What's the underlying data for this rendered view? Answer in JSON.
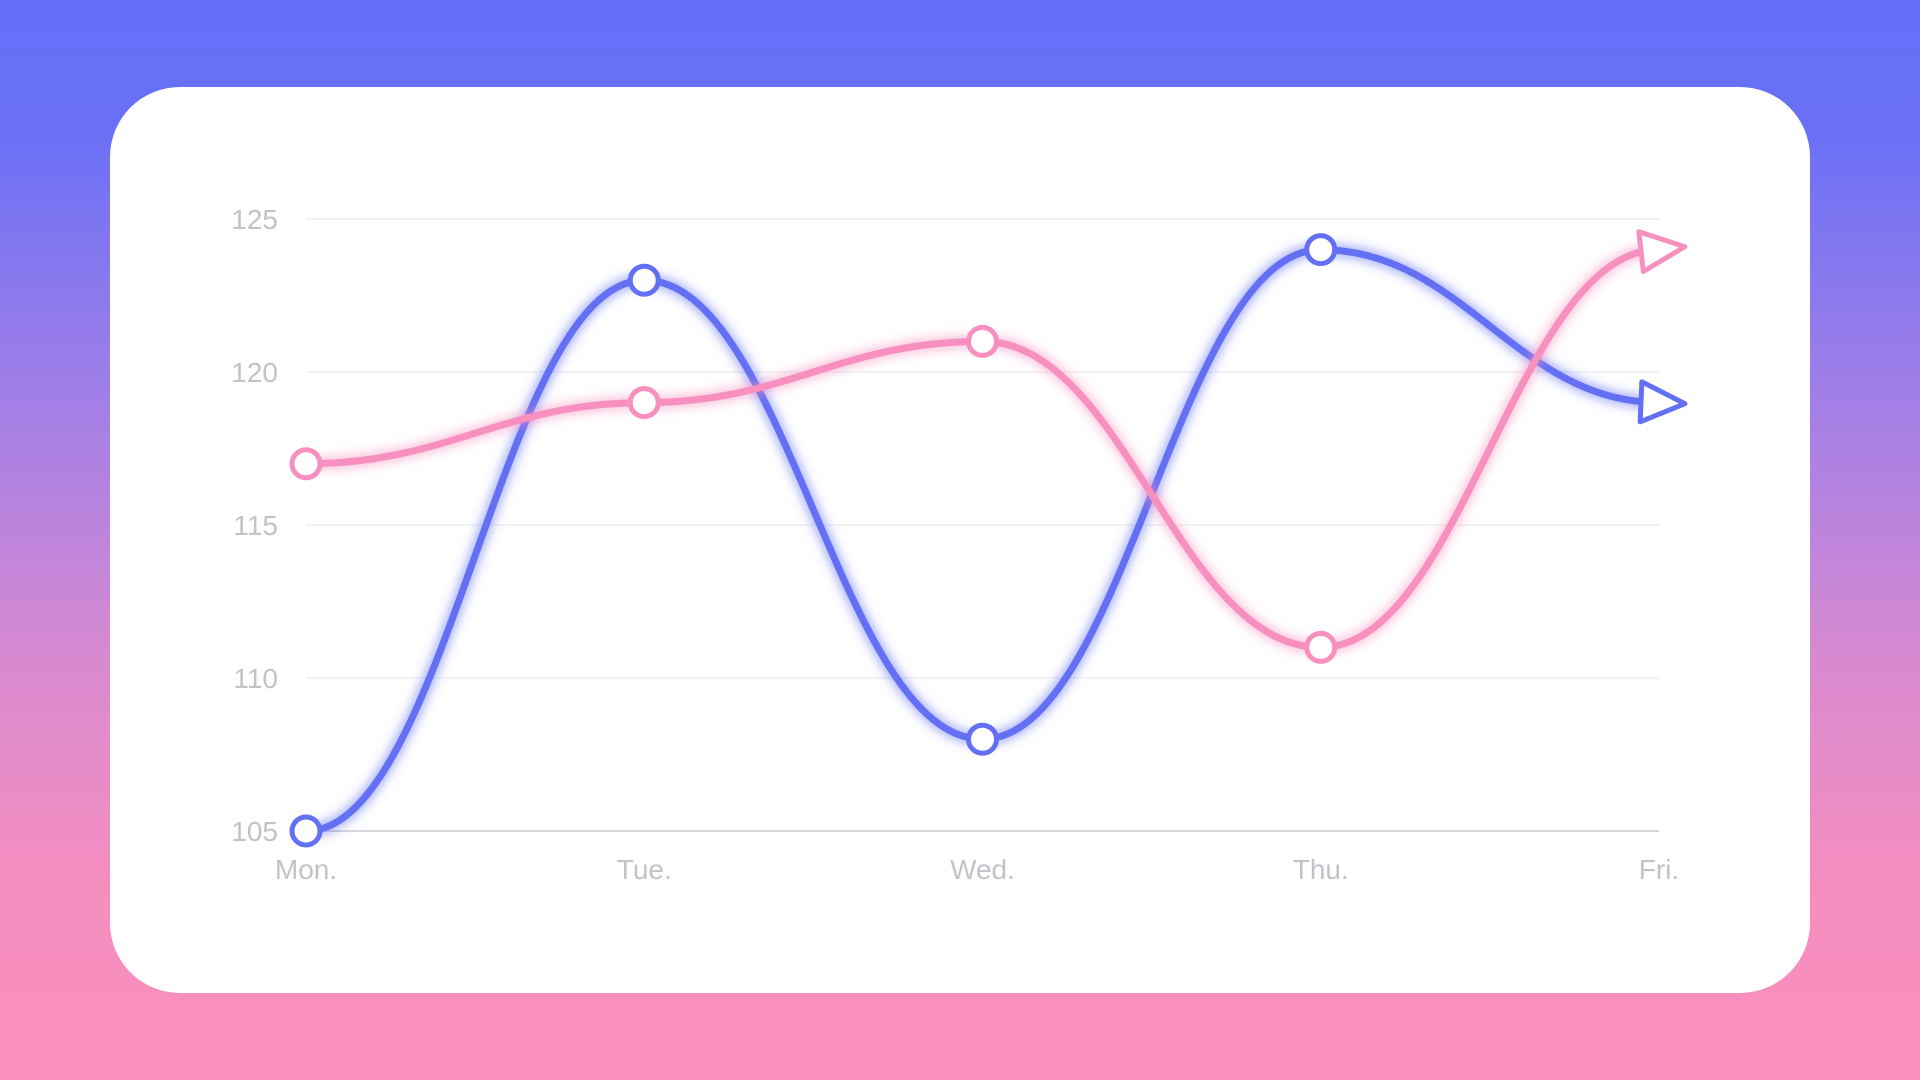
{
  "chart_data": {
    "type": "line",
    "categories": [
      "Mon.",
      "Tue.",
      "Wed.",
      "Thu.",
      "Fri."
    ],
    "series": [
      {
        "values": [
          105,
          123,
          108,
          124,
          119
        ],
        "color": "#6470f3"
      },
      {
        "values": [
          117,
          119,
          121,
          111,
          124
        ],
        "color": "#f790bf"
      }
    ],
    "ylim": [
      105,
      125
    ],
    "yticks": [
      "105",
      "110",
      "115",
      "120",
      "125"
    ],
    "grid": true,
    "markers": "hollow-circle",
    "line_end": "arrow"
  }
}
